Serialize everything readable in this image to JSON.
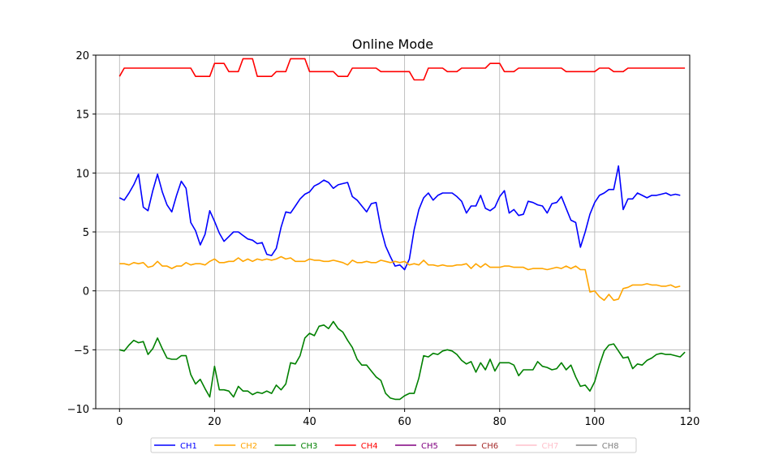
{
  "chart_data": {
    "type": "line",
    "title": "Online Mode",
    "xlabel": "",
    "ylabel": "",
    "xlim": [
      -5,
      120
    ],
    "ylim": [
      -10,
      20
    ],
    "x_ticks": [
      0,
      20,
      40,
      60,
      80,
      100,
      120
    ],
    "y_ticks": [
      -10,
      -5,
      0,
      5,
      10,
      15,
      20
    ],
    "grid": true,
    "legend_position": "bottom-center",
    "series": [
      {
        "name": "CH1",
        "color": "#0000ff",
        "values": [
          7.9,
          7.7,
          8.3,
          9.0,
          9.9,
          7.1,
          6.8,
          8.5,
          9.9,
          8.4,
          7.3,
          6.7,
          8.1,
          9.3,
          8.7,
          5.8,
          5.1,
          3.9,
          4.8,
          6.8,
          5.9,
          4.9,
          4.2,
          4.6,
          5.0,
          5.0,
          4.7,
          4.4,
          4.3,
          4.0,
          4.1,
          3.1,
          3.0,
          3.6,
          5.4,
          6.7,
          6.6,
          7.2,
          7.8,
          8.2,
          8.4,
          8.9,
          9.1,
          9.4,
          9.2,
          8.7,
          9.0,
          9.1,
          9.2,
          8.0,
          7.7,
          7.2,
          6.7,
          7.4,
          7.5,
          5.3,
          3.8,
          2.9,
          2.1,
          2.2,
          1.8,
          2.7,
          5.2,
          6.9,
          7.9,
          8.3,
          7.7,
          8.1,
          8.3,
          8.3,
          8.3,
          8.0,
          7.6,
          6.6,
          7.2,
          7.2,
          8.1,
          7.0,
          6.8,
          7.1,
          8.0,
          8.5,
          6.6,
          6.9,
          6.4,
          6.5,
          7.6,
          7.5,
          7.3,
          7.2,
          6.6,
          7.4,
          7.5,
          8.0,
          7.0,
          6.0,
          5.8,
          3.7,
          5.0,
          6.5,
          7.5,
          8.1,
          8.3,
          8.6,
          8.6,
          10.6,
          6.9,
          7.8,
          7.8,
          8.3,
          8.1,
          7.9,
          8.1,
          8.1,
          8.2,
          8.3,
          8.1,
          8.2,
          8.1
        ]
      },
      {
        "name": "CH2",
        "color": "#ffa500",
        "values": [
          2.3,
          2.3,
          2.2,
          2.4,
          2.3,
          2.4,
          2.0,
          2.1,
          2.5,
          2.1,
          2.1,
          1.9,
          2.1,
          2.1,
          2.4,
          2.2,
          2.3,
          2.3,
          2.2,
          2.5,
          2.7,
          2.4,
          2.4,
          2.5,
          2.5,
          2.8,
          2.5,
          2.7,
          2.5,
          2.7,
          2.6,
          2.7,
          2.6,
          2.7,
          2.9,
          2.7,
          2.8,
          2.5,
          2.5,
          2.5,
          2.7,
          2.6,
          2.6,
          2.5,
          2.5,
          2.6,
          2.5,
          2.4,
          2.2,
          2.6,
          2.4,
          2.4,
          2.5,
          2.4,
          2.4,
          2.6,
          2.5,
          2.4,
          2.5,
          2.4,
          2.5,
          2.2,
          2.3,
          2.2,
          2.6,
          2.2,
          2.2,
          2.1,
          2.2,
          2.1,
          2.1,
          2.2,
          2.2,
          2.3,
          1.9,
          2.3,
          2.0,
          2.3,
          2.0,
          2.0,
          2.0,
          2.1,
          2.1,
          2.0,
          2.0,
          2.0,
          1.8,
          1.9,
          1.9,
          1.9,
          1.8,
          1.9,
          2.0,
          1.9,
          2.1,
          1.9,
          2.1,
          1.8,
          1.8,
          -0.1,
          0.0,
          -0.5,
          -0.8,
          -0.3,
          -0.8,
          -0.7,
          0.2,
          0.3,
          0.5,
          0.5,
          0.5,
          0.6,
          0.5,
          0.5,
          0.4,
          0.4,
          0.5,
          0.3,
          0.4
        ]
      },
      {
        "name": "CH3",
        "color": "#008000",
        "values": [
          -5.0,
          -5.1,
          -4.6,
          -4.2,
          -4.4,
          -4.3,
          -5.4,
          -4.9,
          -4.0,
          -4.9,
          -5.7,
          -5.8,
          -5.8,
          -5.5,
          -5.5,
          -7.1,
          -7.9,
          -7.5,
          -8.3,
          -9.0,
          -6.4,
          -8.4,
          -8.4,
          -8.5,
          -9.0,
          -8.1,
          -8.5,
          -8.5,
          -8.8,
          -8.6,
          -8.7,
          -8.5,
          -8.7,
          -8.0,
          -8.4,
          -7.9,
          -6.1,
          -6.2,
          -5.5,
          -4.0,
          -3.6,
          -3.8,
          -3.0,
          -2.9,
          -3.2,
          -2.6,
          -3.2,
          -3.5,
          -4.2,
          -4.8,
          -5.8,
          -6.3,
          -6.3,
          -6.8,
          -7.3,
          -7.6,
          -8.7,
          -9.1,
          -9.2,
          -9.2,
          -8.9,
          -8.7,
          -8.7,
          -7.4,
          -5.5,
          -5.6,
          -5.3,
          -5.4,
          -5.1,
          -5.0,
          -5.1,
          -5.4,
          -5.9,
          -6.2,
          -6.0,
          -6.9,
          -6.1,
          -6.7,
          -5.8,
          -6.8,
          -6.1,
          -6.1,
          -6.1,
          -6.3,
          -7.2,
          -6.7,
          -6.7,
          -6.7,
          -6.0,
          -6.4,
          -6.5,
          -6.7,
          -6.6,
          -6.1,
          -6.7,
          -6.3,
          -7.3,
          -8.1,
          -8.0,
          -8.5,
          -7.7,
          -6.3,
          -5.1,
          -4.6,
          -4.5,
          -5.1,
          -5.7,
          -5.6,
          -6.6,
          -6.2,
          -6.3,
          -5.9,
          -5.7,
          -5.4,
          -5.3,
          -5.4,
          -5.4,
          -5.5,
          -5.6,
          -5.2
        ]
      },
      {
        "name": "CH4",
        "color": "#ff0000",
        "values": [
          18.2,
          18.9,
          18.9,
          18.9,
          18.9,
          18.9,
          18.9,
          18.9,
          18.9,
          18.9,
          18.9,
          18.9,
          18.9,
          18.9,
          18.9,
          18.9,
          18.2,
          18.2,
          18.2,
          18.2,
          19.3,
          19.3,
          19.3,
          18.6,
          18.6,
          18.6,
          19.7,
          19.7,
          19.7,
          18.2,
          18.2,
          18.2,
          18.2,
          18.6,
          18.6,
          18.6,
          19.7,
          19.7,
          19.7,
          19.7,
          18.6,
          18.6,
          18.6,
          18.6,
          18.6,
          18.6,
          18.2,
          18.2,
          18.2,
          18.9,
          18.9,
          18.9,
          18.9,
          18.9,
          18.9,
          18.6,
          18.6,
          18.6,
          18.6,
          18.6,
          18.6,
          18.6,
          17.9,
          17.9,
          17.9,
          18.9,
          18.9,
          18.9,
          18.9,
          18.6,
          18.6,
          18.6,
          18.9,
          18.9,
          18.9,
          18.9,
          18.9,
          18.9,
          19.3,
          19.3,
          19.3,
          18.6,
          18.6,
          18.6,
          18.9,
          18.9,
          18.9,
          18.9,
          18.9,
          18.9,
          18.9,
          18.9,
          18.9,
          18.9,
          18.6,
          18.6,
          18.6,
          18.6,
          18.6,
          18.6,
          18.6,
          18.9,
          18.9,
          18.9,
          18.6,
          18.6,
          18.6,
          18.9,
          18.9,
          18.9,
          18.9,
          18.9,
          18.9,
          18.9,
          18.9,
          18.9,
          18.9,
          18.9,
          18.9,
          18.9
        ]
      },
      {
        "name": "CH5",
        "color": "#800080",
        "values": []
      },
      {
        "name": "CH6",
        "color": "#a52a2a",
        "values": []
      },
      {
        "name": "CH7",
        "color": "#ffc0cb",
        "values": []
      },
      {
        "name": "CH8",
        "color": "#808080",
        "values": []
      }
    ]
  }
}
